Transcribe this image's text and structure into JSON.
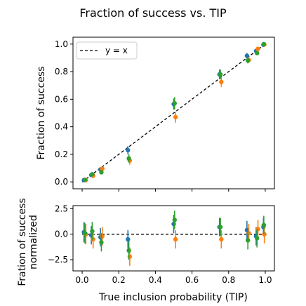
{
  "chart_data": [
    {
      "type": "scatter",
      "title": "Fraction of success vs. TIP",
      "ylabel": "Fraction of success",
      "xlabel": "",
      "xlim": [
        -0.05,
        1.05
      ],
      "ylim": [
        -0.05,
        1.05
      ],
      "yticks": [
        0.0,
        0.2,
        0.4,
        0.6,
        0.8,
        1.0
      ],
      "ytick_labels": [
        "0.0",
        "0.2",
        "0.4",
        "0.6",
        "0.8",
        "1.0"
      ],
      "grid": false,
      "legend_position": "top-left",
      "reference_line": {
        "label": "y = x",
        "style": "dashed",
        "x": [
          0,
          1
        ],
        "y": [
          0,
          1
        ]
      },
      "series": [
        {
          "color": "#1f77b4",
          "x": [
            0.01,
            0.05,
            0.1,
            0.25,
            0.5,
            0.75,
            0.9,
            0.95,
            0.99
          ],
          "y": [
            0.013,
            0.05,
            0.09,
            0.23,
            0.565,
            0.78,
            0.915,
            0.95,
            0.995
          ],
          "err": [
            0.005,
            0.01,
            0.015,
            0.03,
            0.04,
            0.035,
            0.02,
            0.015,
            0.005
          ]
        },
        {
          "color": "#ff7f0e",
          "x": [
            0.02,
            0.06,
            0.11,
            0.26,
            0.51,
            0.76,
            0.91,
            0.96,
            0.995
          ],
          "y": [
            0.013,
            0.045,
            0.095,
            0.155,
            0.47,
            0.725,
            0.885,
            0.965,
            0.997
          ],
          "err": [
            0.005,
            0.01,
            0.015,
            0.03,
            0.04,
            0.035,
            0.02,
            0.015,
            0.005
          ]
        },
        {
          "color": "#2ca02c",
          "x": [
            0.015,
            0.055,
            0.105,
            0.255,
            0.505,
            0.755,
            0.905,
            0.955,
            0.992
          ],
          "y": [
            0.015,
            0.055,
            0.07,
            0.17,
            0.57,
            0.78,
            0.88,
            0.935,
            1.0
          ],
          "err": [
            0.005,
            0.012,
            0.015,
            0.03,
            0.045,
            0.035,
            0.02,
            0.015,
            0.005
          ]
        }
      ]
    },
    {
      "type": "scatter",
      "title": "",
      "ylabel": "Fration of success\nnormalized",
      "xlabel": "True inclusion probability (TIP)",
      "xlim": [
        -0.05,
        1.05
      ],
      "ylim": [
        -3.6,
        2.8
      ],
      "xticks": [
        0.0,
        0.2,
        0.4,
        0.6,
        0.8,
        1.0
      ],
      "xtick_labels": [
        "0.0",
        "0.2",
        "0.4",
        "0.6",
        "0.8",
        "1.0"
      ],
      "yticks": [
        -2.5,
        0.0,
        2.5
      ],
      "ytick_labels": [
        "−2.5",
        "0.0",
        "2.5"
      ],
      "grid": false,
      "reference_line": {
        "style": "dashed",
        "x": [
          0,
          1
        ],
        "y": [
          0,
          0
        ]
      },
      "series": [
        {
          "color": "#1f77b4",
          "x": [
            0.01,
            0.05,
            0.1,
            0.25,
            0.5,
            0.75,
            0.9,
            0.95,
            0.99
          ],
          "y": [
            0.2,
            -0.1,
            -0.3,
            -0.5,
            1.0,
            0.7,
            0.4,
            -0.2,
            0.7
          ],
          "err": [
            1.0,
            0.9,
            0.9,
            0.9,
            0.9,
            0.9,
            0.9,
            0.9,
            0.9
          ]
        },
        {
          "color": "#ff7f0e",
          "x": [
            0.02,
            0.06,
            0.11,
            0.26,
            0.51,
            0.76,
            0.91,
            0.96,
            0.995
          ],
          "y": [
            0.0,
            -0.5,
            -0.2,
            -2.2,
            -0.5,
            -0.5,
            0.1,
            0.5,
            0.0
          ],
          "err": [
            1.0,
            0.9,
            0.9,
            0.9,
            0.9,
            0.9,
            0.9,
            0.9,
            0.9
          ]
        },
        {
          "color": "#2ca02c",
          "x": [
            0.015,
            0.055,
            0.105,
            0.255,
            0.505,
            0.755,
            0.905,
            0.955,
            0.992
          ],
          "y": [
            0.1,
            0.3,
            -0.8,
            -1.6,
            1.4,
            0.7,
            -0.6,
            -0.4,
            0.9
          ],
          "err": [
            1.0,
            0.9,
            0.9,
            0.9,
            0.9,
            0.9,
            0.9,
            0.9,
            0.9
          ]
        }
      ]
    }
  ]
}
